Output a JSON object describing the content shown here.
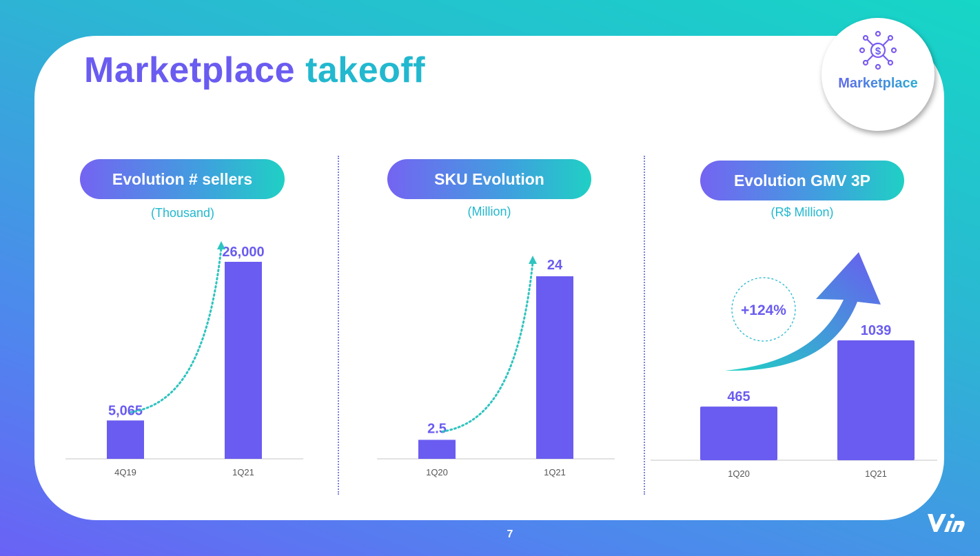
{
  "title": {
    "word1": "Marketplace",
    "word2": "takeoff"
  },
  "badge": {
    "label": "Marketplace",
    "icon": "money-network-icon"
  },
  "page_number": "7",
  "colors": {
    "bar": "#6a5cf0",
    "accent_teal": "#22b8cf",
    "growth_arrow": "#2ec4c0"
  },
  "chart_data": [
    {
      "type": "bar",
      "title": "Evolution # sellers",
      "subtitle": "(Thousand)",
      "categories": [
        "4Q19",
        "1Q21"
      ],
      "values": [
        5065,
        26000
      ],
      "value_labels": [
        "5,065",
        "26,000"
      ],
      "ylim": [
        0,
        26000
      ],
      "grid": false,
      "annotation": "dotted growth arrow"
    },
    {
      "type": "bar",
      "title": "SKU Evolution",
      "subtitle": "(Million)",
      "categories": [
        "1Q20",
        "1Q21"
      ],
      "values": [
        2.5,
        24
      ],
      "value_labels": [
        "2.5",
        "24"
      ],
      "ylim": [
        0,
        24
      ],
      "grid": false,
      "annotation": "dotted growth arrow"
    },
    {
      "type": "bar",
      "title": "Evolution GMV 3P",
      "subtitle": "(R$ Million)",
      "categories": [
        "1Q20",
        "1Q21"
      ],
      "values": [
        465,
        1039
      ],
      "value_labels": [
        "465",
        "1039"
      ],
      "ylim": [
        0,
        1039
      ],
      "grid": false,
      "growth_label": "+124%"
    }
  ]
}
